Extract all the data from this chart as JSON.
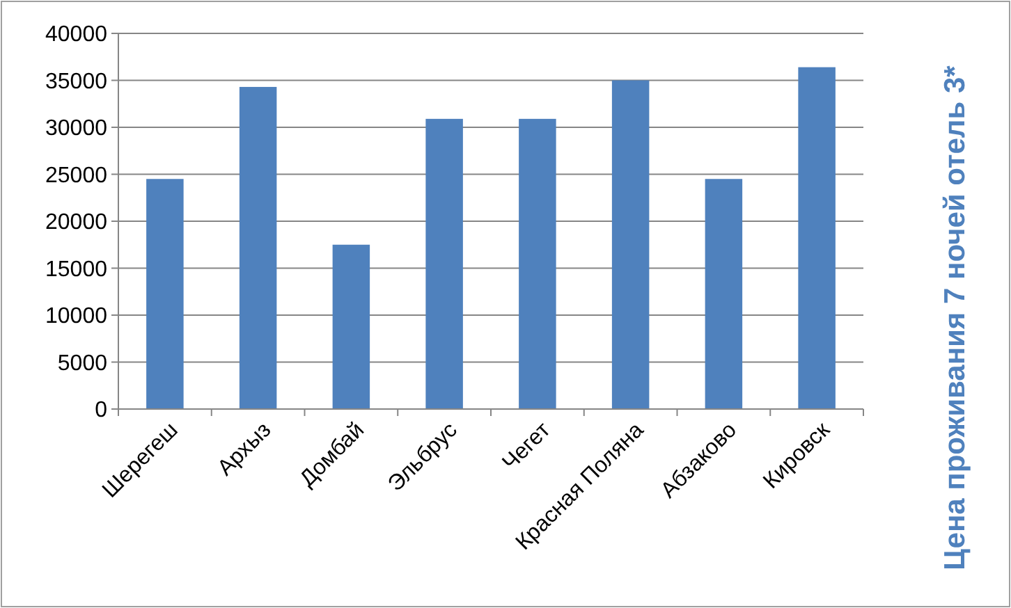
{
  "chart_data": {
    "type": "bar",
    "title": "Цена проживания 7 ночей отель 3*",
    "categories": [
      "Шерегеш",
      "Архыз",
      "Домбай",
      "Эльбрус",
      "Чегет",
      "Красная Поляна",
      "Абзаково",
      "Кировск"
    ],
    "values": [
      24500,
      34300,
      17500,
      30900,
      30900,
      35000,
      24500,
      36400
    ],
    "color": "#4f81bd",
    "ylim": [
      0,
      40000
    ],
    "yticks": [
      0,
      5000,
      10000,
      15000,
      20000,
      25000,
      30000,
      35000,
      40000
    ],
    "grid": "y"
  }
}
